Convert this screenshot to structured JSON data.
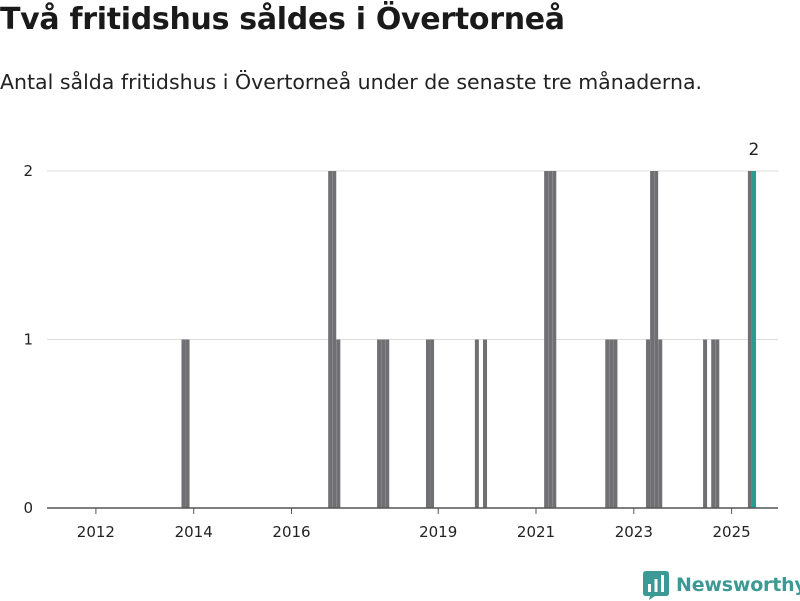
{
  "header": {
    "title": "Två fritidshus såldes i Övertorneå",
    "subtitle": "Antal sålda fritidshus i Övertorneå under de senaste tre månaderna."
  },
  "brand": {
    "name": "Newsworthy"
  },
  "colors": {
    "bar": "#707074",
    "highlight": "#2a9c8f",
    "grid": "#dddddd",
    "axis": "#555555",
    "brand": "#3b9a95"
  },
  "chart_data": {
    "type": "bar",
    "title": "Två fritidshus såldes i Övertorneå",
    "subtitle": "Antal sålda fritidshus i Övertorneå under de senaste tre månaderna.",
    "xlabel": "",
    "ylabel": "",
    "ylim": [
      0,
      2
    ],
    "yticks": [
      0,
      1,
      2
    ],
    "xticks": [
      "2012",
      "2014",
      "2016",
      "2019",
      "2021",
      "2023",
      "2025"
    ],
    "grid": true,
    "legend": "none",
    "bars": [
      {
        "period": "2013-10",
        "value": 1
      },
      {
        "period": "2013-11",
        "value": 1
      },
      {
        "period": "2016-10",
        "value": 2
      },
      {
        "period": "2016-11",
        "value": 2
      },
      {
        "period": "2016-12",
        "value": 1
      },
      {
        "period": "2017-10",
        "value": 1
      },
      {
        "period": "2017-11",
        "value": 1
      },
      {
        "period": "2017-12",
        "value": 1
      },
      {
        "period": "2018-10",
        "value": 1
      },
      {
        "period": "2018-11",
        "value": 1
      },
      {
        "period": "2019-10",
        "value": 1
      },
      {
        "period": "2019-12",
        "value": 1
      },
      {
        "period": "2021-03",
        "value": 2
      },
      {
        "period": "2021-04",
        "value": 2
      },
      {
        "period": "2021-05",
        "value": 2
      },
      {
        "period": "2022-06",
        "value": 1
      },
      {
        "period": "2022-07",
        "value": 1
      },
      {
        "period": "2022-08",
        "value": 1
      },
      {
        "period": "2023-04",
        "value": 1
      },
      {
        "period": "2023-05",
        "value": 2
      },
      {
        "period": "2023-06",
        "value": 2
      },
      {
        "period": "2023-07",
        "value": 1
      },
      {
        "period": "2024-06",
        "value": 1
      },
      {
        "period": "2024-08",
        "value": 1
      },
      {
        "period": "2024-09",
        "value": 1
      },
      {
        "period": "2025-05",
        "value": 2
      },
      {
        "period": "2025-06",
        "value": 2,
        "highlight": true,
        "label": "2"
      }
    ]
  }
}
